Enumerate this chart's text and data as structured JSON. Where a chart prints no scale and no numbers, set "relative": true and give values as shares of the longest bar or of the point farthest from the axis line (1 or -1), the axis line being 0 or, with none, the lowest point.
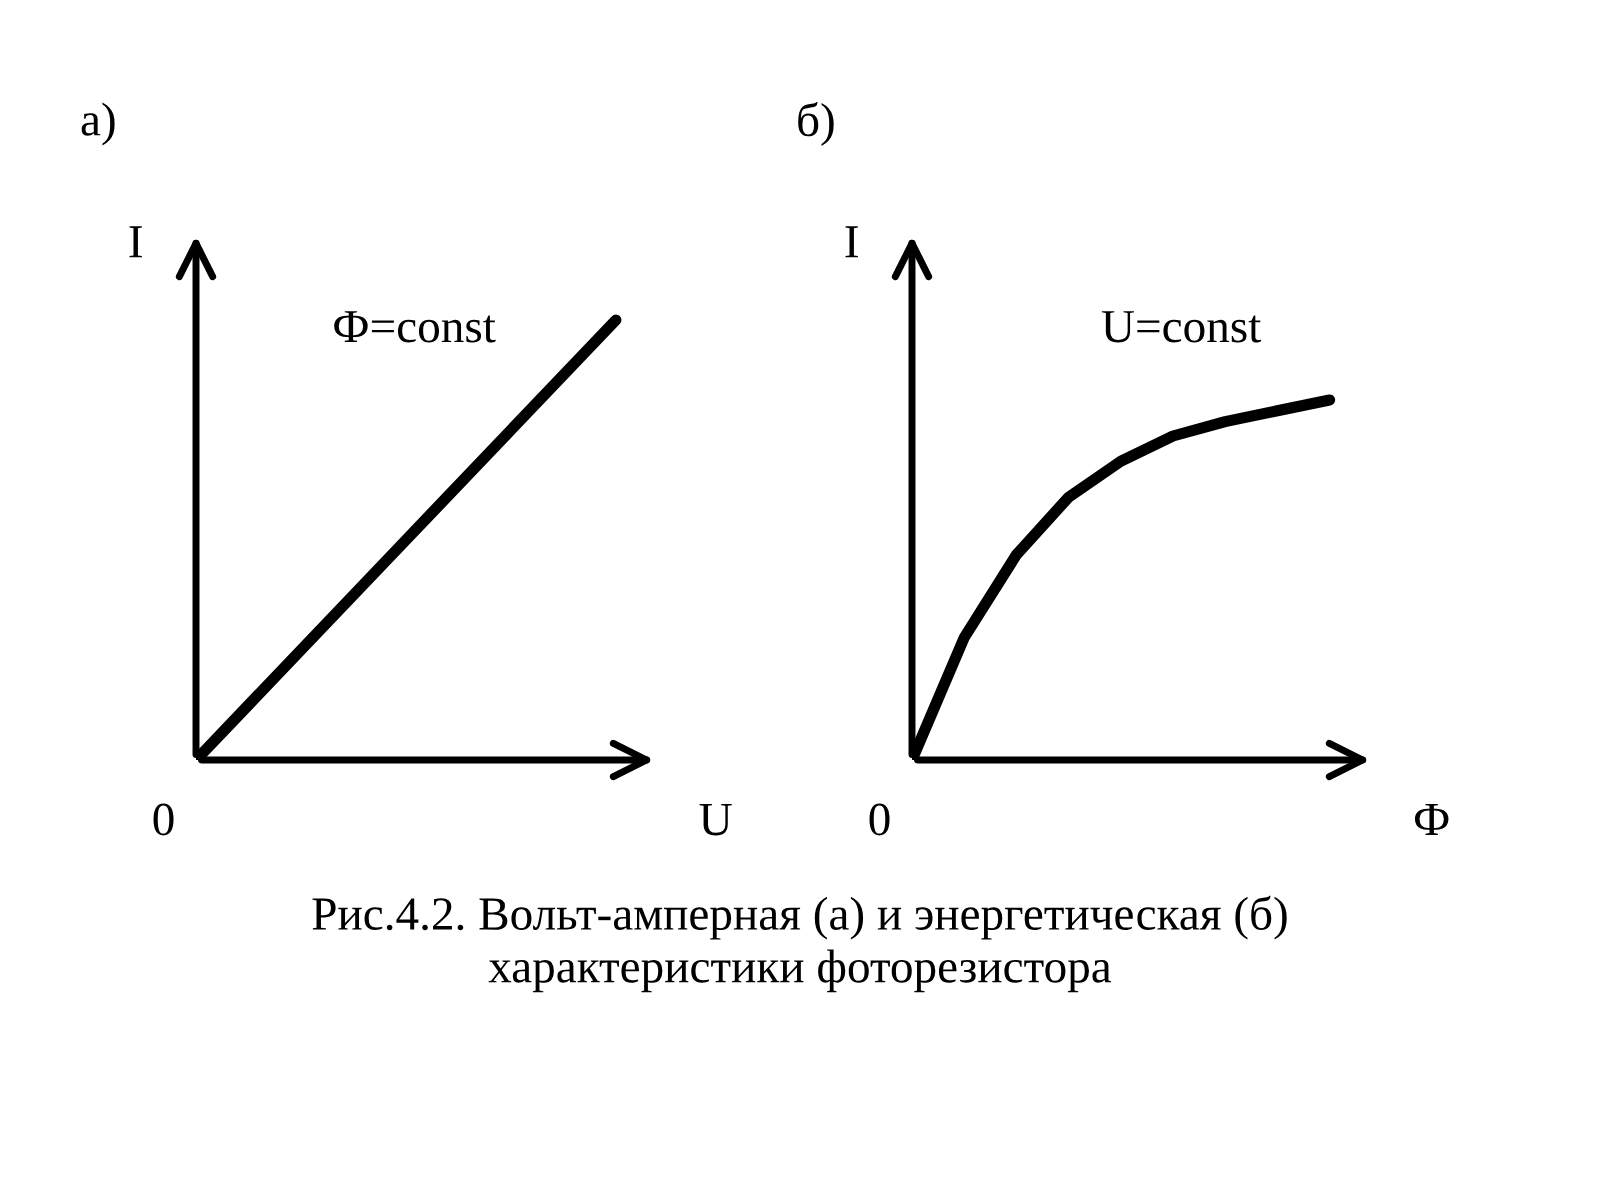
{
  "chart_data": [
    {
      "type": "line",
      "title": "а)",
      "xlabel": "U",
      "ylabel": "I",
      "relative": true,
      "grid": false,
      "legend": false,
      "categories": [
        null,
        null,
        null,
        null,
        null
      ],
      "series": [
        {
          "color": "#000000",
          "values": [
            0,
            0.25,
            0.5,
            0.75,
            1
          ]
        }
      ],
      "annotations": [
        "0",
        "Ф=const",
        "Рис.4.2. Вольт-амперная (а) и энергетическая (б)\nхарактеристики фоторезистора"
      ]
    },
    {
      "type": "line",
      "title": "б)",
      "xlabel": "Ф",
      "ylabel": "I",
      "relative": true,
      "grid": false,
      "legend": false,
      "categories": [
        null,
        null,
        null,
        null,
        null,
        null,
        null,
        null,
        null
      ],
      "series": [
        {
          "color": "#000000",
          "values": [
            0,
            0.34,
            0.57,
            0.73,
            0.83,
            0.9,
            0.94,
            0.97,
            1
          ]
        }
      ],
      "annotations": [
        "0",
        "U=const"
      ]
    }
  ]
}
